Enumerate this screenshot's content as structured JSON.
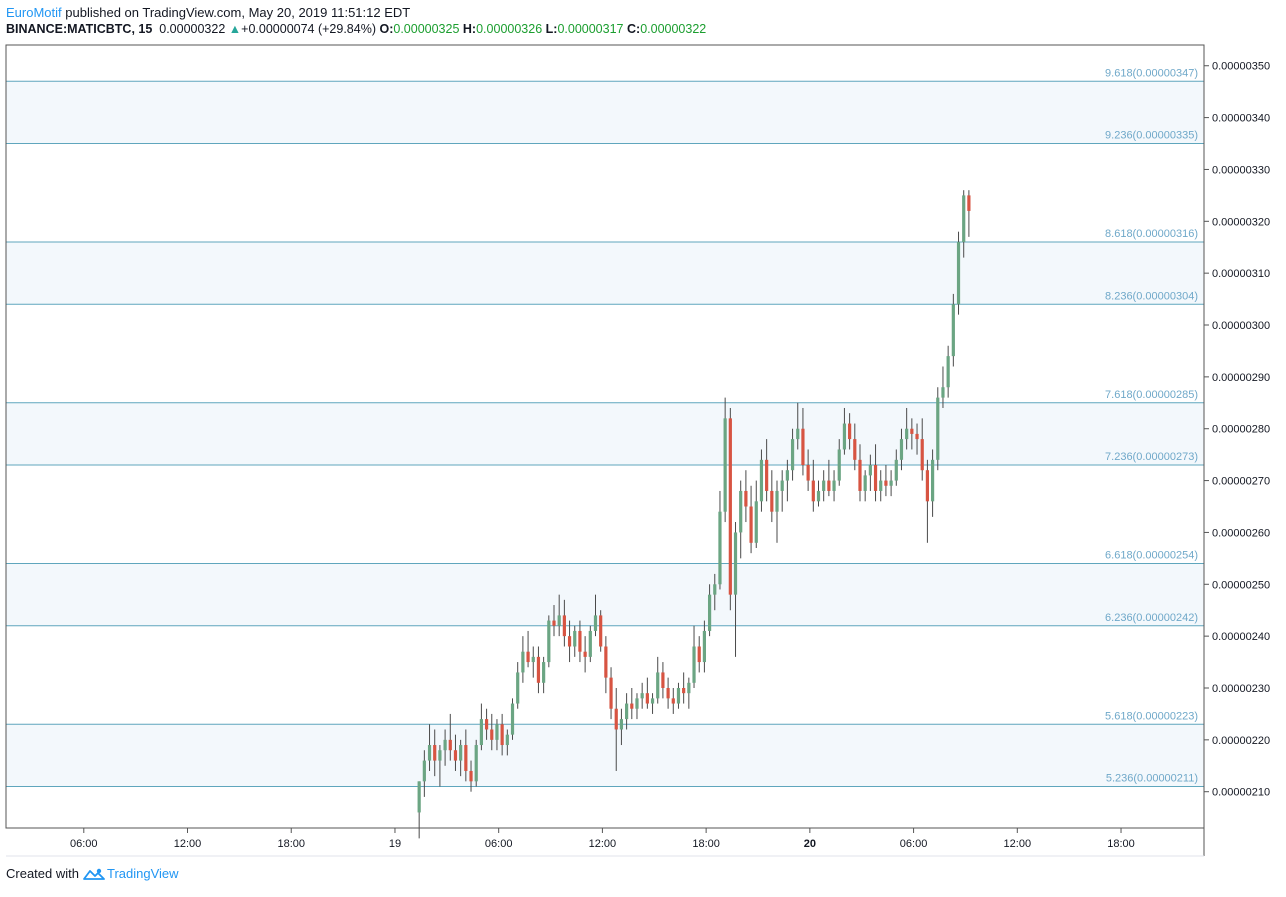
{
  "header": {
    "author": "EuroMotif",
    "published_text": "published on TradingView.com, May 20, 2019 11:51:12 EDT",
    "symbol": "BINANCE:MATICBTC, 15",
    "last": "0.00000322",
    "change": "+0.00000074 (+29.84%)",
    "o_label": "O:",
    "o_value": "0.00000325",
    "h_label": "H:",
    "h_value": "0.00000326",
    "l_label": "L:",
    "l_value": "0.00000317",
    "c_label": "C:",
    "c_value": "0.00000322"
  },
  "footer": {
    "created_with": "Created with",
    "brand": "TradingView"
  },
  "colors": {
    "up": "#6ba583",
    "down": "#d75442",
    "level_line": "#5fa6bd",
    "band_fill": "#f3f8fc",
    "level_text": "#6fa8c9",
    "axis": "#555555"
  },
  "chart_data": {
    "type": "candlestick",
    "ylim": [
      2.03e-06,
      3.54e-06
    ],
    "y_ticks": [
      {
        "value": 2.1e-06,
        "label": "0.00000210"
      },
      {
        "value": 2.2e-06,
        "label": "0.00000220"
      },
      {
        "value": 2.3e-06,
        "label": "0.00000230"
      },
      {
        "value": 2.4e-06,
        "label": "0.00000240"
      },
      {
        "value": 2.5e-06,
        "label": "0.00000250"
      },
      {
        "value": 2.6e-06,
        "label": "0.00000260"
      },
      {
        "value": 2.7e-06,
        "label": "0.00000270"
      },
      {
        "value": 2.8e-06,
        "label": "0.00000280"
      },
      {
        "value": 2.9e-06,
        "label": "0.00000290"
      },
      {
        "value": 3e-06,
        "label": "0.00000300"
      },
      {
        "value": 3.1e-06,
        "label": "0.00000310"
      },
      {
        "value": 3.2e-06,
        "label": "0.00000320"
      },
      {
        "value": 3.3e-06,
        "label": "0.00000330"
      },
      {
        "value": 3.4e-06,
        "label": "0.00000340"
      },
      {
        "value": 3.5e-06,
        "label": "0.00000350"
      }
    ],
    "x_ticks": [
      {
        "hours": 6,
        "label": "06:00",
        "bold": false
      },
      {
        "hours": 12,
        "label": "12:00",
        "bold": false
      },
      {
        "hours": 18,
        "label": "18:00",
        "bold": false
      },
      {
        "hours": 24,
        "label": "19",
        "bold": false
      },
      {
        "hours": 30,
        "label": "06:00",
        "bold": false
      },
      {
        "hours": 36,
        "label": "12:00",
        "bold": false
      },
      {
        "hours": 42,
        "label": "18:00",
        "bold": false
      },
      {
        "hours": 48,
        "label": "20",
        "bold": true
      },
      {
        "hours": 54,
        "label": "06:00",
        "bold": false
      },
      {
        "hours": 60,
        "label": "12:00",
        "bold": false
      },
      {
        "hours": 66,
        "label": "18:00",
        "bold": false
      }
    ],
    "x_hours_range": [
      1.5,
      70.8
    ],
    "fib_levels": [
      {
        "ratio": "9.618",
        "value": 3.47e-06,
        "label": "9.618(0.00000347)"
      },
      {
        "ratio": "9.236",
        "value": 3.35e-06,
        "label": "9.236(0.00000335)"
      },
      {
        "ratio": "8.618",
        "value": 3.16e-06,
        "label": "8.618(0.00000316)"
      },
      {
        "ratio": "8.236",
        "value": 3.04e-06,
        "label": "8.236(0.00000304)"
      },
      {
        "ratio": "7.618",
        "value": 2.85e-06,
        "label": "7.618(0.00000285)"
      },
      {
        "ratio": "7.236",
        "value": 2.73e-06,
        "label": "7.236(0.00000273)"
      },
      {
        "ratio": "6.618",
        "value": 2.54e-06,
        "label": "6.618(0.00000254)"
      },
      {
        "ratio": "6.236",
        "value": 2.42e-06,
        "label": "6.236(0.00000242)"
      },
      {
        "ratio": "5.618",
        "value": 2.23e-06,
        "label": "5.618(0.00000223)"
      },
      {
        "ratio": "5.236",
        "value": 2.11e-06,
        "label": "5.236(0.00000211)"
      }
    ],
    "fib_bands": [
      [
        3.47e-06,
        3.35e-06
      ],
      [
        3.16e-06,
        3.04e-06
      ],
      [
        2.85e-06,
        2.73e-06
      ],
      [
        2.54e-06,
        2.42e-06
      ],
      [
        2.23e-06,
        2.11e-06
      ]
    ],
    "candles": [
      [
        25.4,
        206,
        212,
        201,
        212
      ],
      [
        25.7,
        212,
        218,
        209,
        216
      ],
      [
        26.0,
        216,
        223,
        214,
        219
      ],
      [
        26.3,
        219,
        222,
        213,
        216
      ],
      [
        26.6,
        216,
        219,
        211,
        218
      ],
      [
        26.9,
        218,
        222,
        215,
        220
      ],
      [
        27.2,
        220,
        225,
        216,
        218
      ],
      [
        27.5,
        218,
        221,
        214,
        216
      ],
      [
        27.8,
        216,
        220,
        213,
        219
      ],
      [
        28.1,
        219,
        222,
        212,
        214
      ],
      [
        28.4,
        214,
        216,
        210,
        212
      ],
      [
        28.7,
        212,
        220,
        211,
        219
      ],
      [
        29.0,
        219,
        227,
        218,
        224
      ],
      [
        29.3,
        224,
        226,
        220,
        222
      ],
      [
        29.6,
        222,
        225,
        218,
        220
      ],
      [
        29.9,
        220,
        224,
        218,
        223
      ],
      [
        30.2,
        223,
        225,
        217,
        219
      ],
      [
        30.5,
        219,
        222,
        217,
        221
      ],
      [
        30.8,
        221,
        228,
        220,
        227
      ],
      [
        31.1,
        227,
        235,
        226,
        233
      ],
      [
        31.4,
        233,
        240,
        231,
        237
      ],
      [
        31.7,
        237,
        241,
        234,
        235
      ],
      [
        32.0,
        235,
        238,
        232,
        236
      ],
      [
        32.3,
        236,
        238,
        229,
        231
      ],
      [
        32.6,
        231,
        236,
        229,
        235
      ],
      [
        32.9,
        235,
        244,
        234,
        243
      ],
      [
        33.2,
        243,
        246,
        240,
        242
      ],
      [
        33.5,
        242,
        248,
        240,
        244
      ],
      [
        33.8,
        244,
        247,
        238,
        240
      ],
      [
        34.1,
        240,
        243,
        235,
        238
      ],
      [
        34.4,
        238,
        242,
        236,
        241
      ],
      [
        34.7,
        241,
        243,
        235,
        237
      ],
      [
        35.0,
        237,
        240,
        233,
        236
      ],
      [
        35.3,
        236,
        242,
        235,
        241
      ],
      [
        35.6,
        241,
        248,
        240,
        244
      ],
      [
        35.9,
        244,
        245,
        237,
        238
      ],
      [
        36.2,
        238,
        240,
        229,
        232
      ],
      [
        36.5,
        232,
        234,
        224,
        226
      ],
      [
        36.8,
        226,
        230,
        214,
        222
      ],
      [
        37.1,
        222,
        226,
        219,
        224
      ],
      [
        37.4,
        224,
        229,
        222,
        227
      ],
      [
        37.7,
        227,
        230,
        224,
        226
      ],
      [
        38.0,
        226,
        229,
        224,
        228
      ],
      [
        38.3,
        228,
        231,
        226,
        229
      ],
      [
        38.6,
        229,
        232,
        226,
        227
      ],
      [
        38.9,
        227,
        229,
        225,
        228
      ],
      [
        39.2,
        228,
        236,
        227,
        233
      ],
      [
        39.5,
        233,
        235,
        228,
        230
      ],
      [
        39.8,
        230,
        232,
        226,
        228
      ],
      [
        40.1,
        228,
        230,
        225,
        227
      ],
      [
        40.4,
        227,
        231,
        226,
        230
      ],
      [
        40.7,
        230,
        233,
        227,
        229
      ],
      [
        41.0,
        229,
        232,
        226,
        231
      ],
      [
        41.3,
        231,
        242,
        230,
        238
      ],
      [
        41.6,
        238,
        240,
        233,
        235
      ],
      [
        41.9,
        235,
        243,
        233,
        241
      ],
      [
        42.2,
        241,
        250,
        240,
        248
      ],
      [
        42.5,
        248,
        252,
        245,
        250
      ],
      [
        42.8,
        250,
        268,
        249,
        264
      ],
      [
        43.1,
        264,
        286,
        262,
        282
      ],
      [
        43.4,
        282,
        284,
        245,
        248
      ],
      [
        43.7,
        248,
        262,
        236,
        260
      ],
      [
        44.0,
        260,
        270,
        255,
        268
      ],
      [
        44.3,
        268,
        272,
        262,
        265
      ],
      [
        44.6,
        265,
        269,
        256,
        258
      ],
      [
        44.9,
        258,
        270,
        257,
        266
      ],
      [
        45.2,
        266,
        276,
        264,
        274
      ],
      [
        45.5,
        274,
        278,
        266,
        268
      ],
      [
        45.8,
        268,
        272,
        262,
        264
      ],
      [
        46.1,
        264,
        270,
        258,
        268
      ],
      [
        46.4,
        268,
        272,
        264,
        270
      ],
      [
        46.7,
        270,
        274,
        266,
        272
      ],
      [
        47.0,
        272,
        280,
        270,
        278
      ],
      [
        47.3,
        278,
        285,
        276,
        280
      ],
      [
        47.6,
        280,
        284,
        271,
        273
      ],
      [
        47.9,
        273,
        276,
        268,
        270
      ],
      [
        48.2,
        270,
        274,
        264,
        266
      ],
      [
        48.5,
        266,
        270,
        265,
        268
      ],
      [
        48.8,
        268,
        272,
        266,
        270
      ],
      [
        49.1,
        270,
        274,
        267,
        268
      ],
      [
        49.4,
        268,
        272,
        266,
        270
      ],
      [
        49.7,
        270,
        278,
        269,
        276
      ],
      [
        50.0,
        276,
        284,
        275,
        281
      ],
      [
        50.3,
        281,
        283,
        276,
        278
      ],
      [
        50.6,
        278,
        281,
        272,
        274
      ],
      [
        50.9,
        274,
        277,
        266,
        268
      ],
      [
        51.2,
        268,
        272,
        266,
        271
      ],
      [
        51.5,
        271,
        275,
        268,
        273
      ],
      [
        51.8,
        273,
        277,
        266,
        268
      ],
      [
        52.1,
        268,
        272,
        266,
        270
      ],
      [
        52.4,
        270,
        273,
        267,
        269
      ],
      [
        52.7,
        269,
        272,
        267,
        270
      ],
      [
        53.0,
        270,
        276,
        269,
        274
      ],
      [
        53.3,
        274,
        280,
        272,
        278
      ],
      [
        53.6,
        278,
        284,
        276,
        280
      ],
      [
        53.9,
        280,
        282,
        276,
        279
      ],
      [
        54.2,
        279,
        281,
        275,
        278
      ],
      [
        54.5,
        278,
        282,
        270,
        272
      ],
      [
        54.8,
        272,
        274,
        258,
        266
      ],
      [
        55.1,
        266,
        276,
        263,
        274
      ],
      [
        55.4,
        274,
        288,
        272,
        286
      ],
      [
        55.7,
        286,
        292,
        284,
        288
      ],
      [
        56.0,
        288,
        296,
        286,
        294
      ],
      [
        56.3,
        294,
        306,
        292,
        304
      ],
      [
        56.6,
        304,
        318,
        302,
        316
      ],
      [
        56.9,
        316,
        326,
        313,
        325
      ],
      [
        57.2,
        325,
        326,
        317,
        322
      ]
    ]
  }
}
